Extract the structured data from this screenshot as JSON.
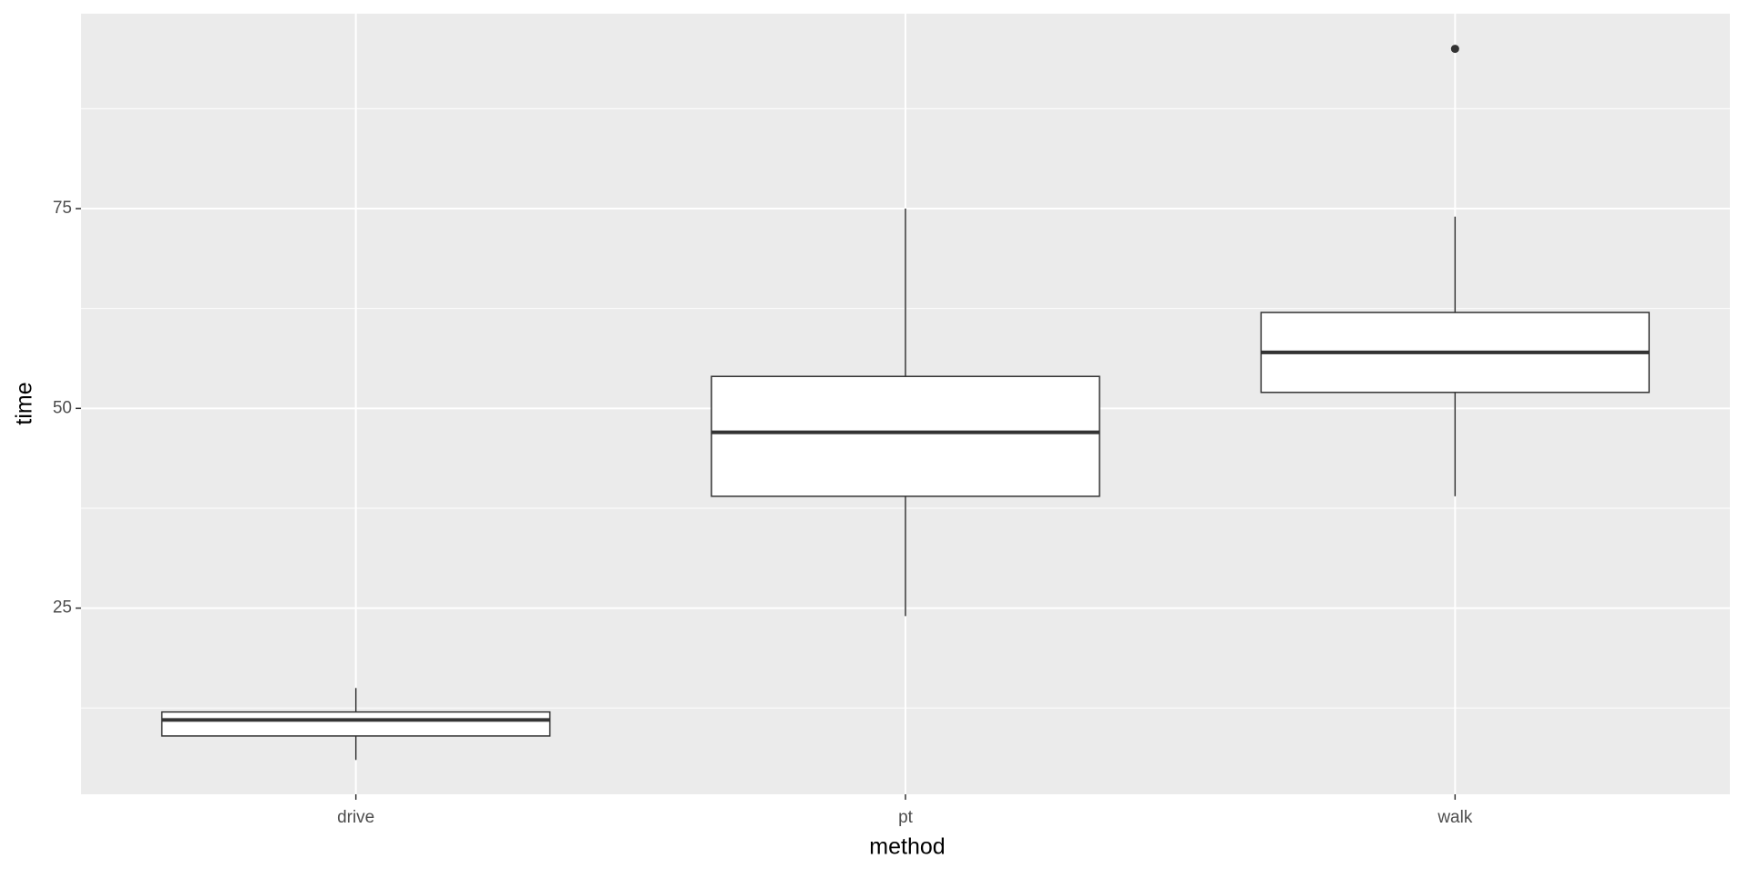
{
  "chart_data": {
    "type": "box",
    "x_label": "method",
    "y_label": "time",
    "categories": [
      "drive",
      "pt",
      "walk"
    ],
    "min": [
      6,
      24,
      39
    ],
    "q1": [
      9,
      39,
      52
    ],
    "median": [
      11,
      47,
      57
    ],
    "q3": [
      12,
      54,
      62
    ],
    "max": [
      15,
      75,
      74
    ],
    "outliers": [
      [],
      [],
      [
        95
      ]
    ],
    "ylim": [
      1.7,
      99.4
    ],
    "yticks": [
      25,
      50,
      75
    ],
    "minor_yticks": [
      12.5,
      37.5,
      62.5,
      87.5
    ],
    "grid": true
  }
}
